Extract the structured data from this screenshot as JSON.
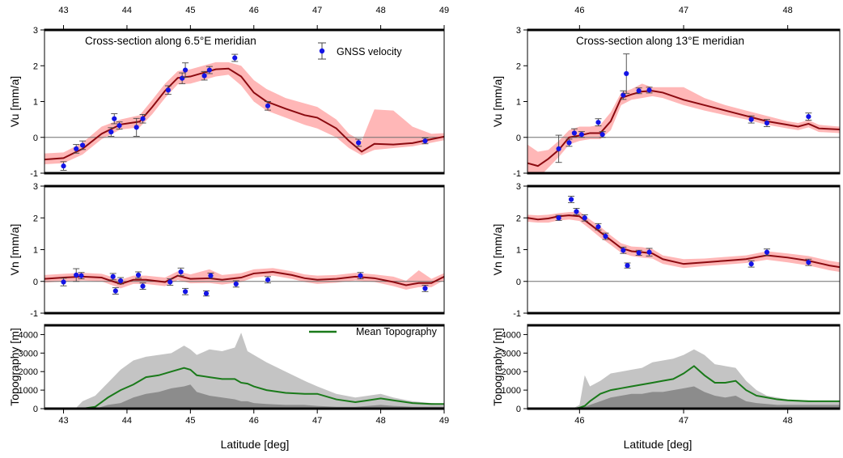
{
  "figure": {
    "xlabel": "Latitude [deg]",
    "colors": {
      "band": "#ffb7b7",
      "model_line": "#8b0a10",
      "gnss_point": "#1414e6",
      "error_bar": "#444444",
      "topo_range": "#c4c4c4",
      "topo_min": "#8c8c8c",
      "topo_mean": "#1a7a1a",
      "zero_line": "#6f6f6f"
    }
  },
  "legend": {
    "gnss": "GNSS velocity",
    "topo": "Mean Topography"
  },
  "chart_data": [
    {
      "id": "left-vu",
      "type": "line",
      "title": "Cross-section along 6.5°E meridian",
      "ylabel": "Vu [mm/a]",
      "xlim": [
        42.7,
        49.0
      ],
      "ylim": [
        -1,
        3
      ],
      "xticks": [
        43,
        44,
        45,
        46,
        47,
        48,
        49
      ],
      "yticks": [
        -1,
        0,
        1,
        2,
        3
      ],
      "model": {
        "x": [
          42.7,
          43.0,
          43.3,
          43.6,
          43.9,
          44.2,
          44.4,
          44.6,
          44.8,
          45.0,
          45.2,
          45.4,
          45.6,
          45.8,
          46.0,
          46.2,
          46.5,
          46.8,
          47.0,
          47.3,
          47.5,
          47.7,
          47.9,
          48.2,
          48.5,
          48.8,
          49.0
        ],
        "y": [
          -0.62,
          -0.58,
          -0.32,
          0.1,
          0.36,
          0.44,
          0.85,
          1.3,
          1.66,
          1.7,
          1.8,
          1.9,
          1.92,
          1.7,
          1.25,
          1.0,
          0.8,
          0.62,
          0.55,
          0.25,
          -0.1,
          -0.4,
          -0.18,
          -0.2,
          -0.16,
          -0.05,
          0.02
        ],
        "band_upper": [
          -0.45,
          -0.42,
          -0.15,
          0.3,
          0.5,
          0.62,
          1.05,
          1.5,
          1.85,
          1.9,
          2.0,
          2.1,
          2.1,
          2.0,
          1.6,
          1.35,
          1.1,
          0.95,
          0.85,
          0.5,
          0.1,
          -0.1,
          0.78,
          0.75,
          0.3,
          0.1,
          0.12
        ],
        "band_lower": [
          -0.75,
          -0.72,
          -0.48,
          -0.05,
          0.22,
          0.28,
          0.65,
          1.1,
          1.48,
          1.5,
          1.6,
          1.7,
          1.75,
          1.45,
          1.0,
          0.75,
          0.55,
          0.35,
          0.25,
          0.0,
          -0.3,
          -0.5,
          -0.35,
          -0.3,
          -0.25,
          -0.15,
          -0.08
        ]
      },
      "gnss": [
        {
          "x": 43.0,
          "y": -0.8,
          "err": 0.12
        },
        {
          "x": 43.2,
          "y": -0.32,
          "err": 0.12
        },
        {
          "x": 43.3,
          "y": -0.22,
          "err": 0.12
        },
        {
          "x": 43.75,
          "y": 0.15,
          "err": 0.12
        },
        {
          "x": 43.8,
          "y": 0.52,
          "err": 0.14
        },
        {
          "x": 43.88,
          "y": 0.33,
          "err": 0.1
        },
        {
          "x": 44.15,
          "y": 0.28,
          "err": 0.25
        },
        {
          "x": 44.25,
          "y": 0.52,
          "err": 0.12
        },
        {
          "x": 44.65,
          "y": 1.32,
          "err": 0.12
        },
        {
          "x": 44.87,
          "y": 1.65,
          "err": 0.15
        },
        {
          "x": 44.92,
          "y": 1.88,
          "err": 0.2
        },
        {
          "x": 45.22,
          "y": 1.72,
          "err": 0.12
        },
        {
          "x": 45.3,
          "y": 1.88,
          "err": 0.1
        },
        {
          "x": 45.7,
          "y": 2.22,
          "err": 0.1
        },
        {
          "x": 46.22,
          "y": 0.88,
          "err": 0.12
        },
        {
          "x": 47.65,
          "y": -0.15,
          "err": 0.1
        },
        {
          "x": 48.7,
          "y": -0.1,
          "err": 0.08
        }
      ]
    },
    {
      "id": "left-vn",
      "type": "line",
      "ylabel": "Vn [mm/a]",
      "xlim": [
        42.7,
        49.0
      ],
      "ylim": [
        -1,
        3
      ],
      "xticks": [
        43,
        44,
        45,
        46,
        47,
        48,
        49
      ],
      "yticks": [
        -1,
        0,
        1,
        2,
        3
      ],
      "model": {
        "x": [
          42.7,
          43.0,
          43.3,
          43.6,
          43.9,
          44.1,
          44.3,
          44.6,
          44.8,
          45.0,
          45.3,
          45.5,
          45.8,
          46.0,
          46.3,
          46.6,
          46.8,
          47.0,
          47.3,
          47.6,
          47.9,
          48.2,
          48.4,
          48.6,
          48.8,
          49.0
        ],
        "y": [
          0.08,
          0.12,
          0.15,
          0.12,
          -0.08,
          0.05,
          0.05,
          -0.02,
          0.18,
          0.08,
          0.1,
          0.05,
          0.12,
          0.25,
          0.3,
          0.2,
          0.1,
          0.05,
          0.08,
          0.15,
          0.1,
          -0.02,
          -0.12,
          -0.05,
          -0.05,
          0.15
        ],
        "band_upper": [
          0.2,
          0.24,
          0.27,
          0.24,
          0.05,
          0.18,
          0.18,
          0.12,
          0.32,
          0.22,
          0.38,
          0.2,
          0.26,
          0.38,
          0.42,
          0.32,
          0.22,
          0.18,
          0.2,
          0.27,
          0.22,
          0.15,
          0.02,
          0.35,
          0.08,
          0.26
        ],
        "band_lower": [
          -0.04,
          0.0,
          0.03,
          0.0,
          -0.22,
          -0.08,
          -0.08,
          -0.15,
          0.04,
          -0.06,
          -0.05,
          -0.1,
          -0.02,
          0.12,
          0.18,
          0.08,
          -0.02,
          -0.08,
          -0.04,
          0.03,
          -0.02,
          -0.15,
          -0.26,
          -0.18,
          -0.18,
          0.04
        ]
      },
      "gnss": [
        {
          "x": 43.0,
          "y": -0.02,
          "err": 0.12
        },
        {
          "x": 43.2,
          "y": 0.2,
          "err": 0.2
        },
        {
          "x": 43.28,
          "y": 0.18,
          "err": 0.1
        },
        {
          "x": 43.78,
          "y": 0.15,
          "err": 0.1
        },
        {
          "x": 43.82,
          "y": -0.3,
          "err": 0.1
        },
        {
          "x": 43.9,
          "y": 0.02,
          "err": 0.1
        },
        {
          "x": 44.18,
          "y": 0.2,
          "err": 0.1
        },
        {
          "x": 44.25,
          "y": -0.15,
          "err": 0.1
        },
        {
          "x": 44.68,
          "y": -0.02,
          "err": 0.1
        },
        {
          "x": 44.85,
          "y": 0.3,
          "err": 0.12
        },
        {
          "x": 44.92,
          "y": -0.32,
          "err": 0.1
        },
        {
          "x": 45.25,
          "y": -0.38,
          "err": 0.08
        },
        {
          "x": 45.32,
          "y": 0.18,
          "err": 0.08
        },
        {
          "x": 45.72,
          "y": -0.08,
          "err": 0.1
        },
        {
          "x": 46.22,
          "y": 0.05,
          "err": 0.1
        },
        {
          "x": 47.68,
          "y": 0.18,
          "err": 0.1
        },
        {
          "x": 48.7,
          "y": -0.22,
          "err": 0.1
        }
      ]
    },
    {
      "id": "left-topo",
      "type": "area",
      "ylabel": "Topography [m]",
      "xlim": [
        42.7,
        49.0
      ],
      "ylim": [
        0,
        4500
      ],
      "xticks": [
        43,
        44,
        45,
        46,
        47,
        48,
        49
      ],
      "yticks": [
        0,
        1000,
        2000,
        3000,
        4000
      ],
      "topo": {
        "x": [
          42.7,
          43.0,
          43.2,
          43.3,
          43.5,
          43.7,
          43.9,
          44.1,
          44.3,
          44.5,
          44.7,
          44.9,
          45.0,
          45.1,
          45.3,
          45.5,
          45.7,
          45.8,
          45.9,
          46.0,
          46.2,
          46.5,
          46.8,
          47.0,
          47.3,
          47.6,
          47.8,
          48.0,
          48.2,
          48.5,
          48.8,
          49.0
        ],
        "max": [
          0,
          0,
          50,
          400,
          700,
          1400,
          2100,
          2600,
          2800,
          2900,
          3000,
          3400,
          3200,
          2900,
          3200,
          3100,
          3300,
          4100,
          3100,
          2900,
          2500,
          2000,
          1500,
          1200,
          800,
          600,
          700,
          800,
          600,
          400,
          300,
          250
        ],
        "mean": [
          0,
          0,
          0,
          0,
          100,
          600,
          1000,
          1300,
          1700,
          1800,
          2000,
          2200,
          2100,
          1800,
          1700,
          1600,
          1600,
          1400,
          1350,
          1200,
          1000,
          850,
          800,
          800,
          500,
          350,
          450,
          550,
          450,
          300,
          250,
          250
        ],
        "min": [
          0,
          0,
          0,
          0,
          0,
          200,
          300,
          600,
          800,
          900,
          1100,
          1200,
          1300,
          900,
          700,
          600,
          500,
          400,
          400,
          300,
          250,
          200,
          200,
          150,
          100,
          100,
          150,
          200,
          150,
          100,
          100,
          100
        ]
      }
    },
    {
      "id": "right-vu",
      "type": "line",
      "title": "Cross-section along 13°E meridian",
      "ylabel": "Vu [mm/a]",
      "xlim": [
        45.5,
        48.5
      ],
      "ylim": [
        -1,
        3
      ],
      "xticks": [
        46,
        47,
        48
      ],
      "yticks": [
        -1,
        0,
        1,
        2,
        3
      ],
      "model": {
        "x": [
          45.5,
          45.6,
          45.7,
          45.8,
          45.9,
          46.0,
          46.1,
          46.2,
          46.3,
          46.4,
          46.5,
          46.6,
          46.7,
          46.8,
          47.0,
          47.2,
          47.4,
          47.6,
          47.8,
          48.0,
          48.1,
          48.2,
          48.3,
          48.5
        ],
        "y": [
          -0.72,
          -0.8,
          -0.6,
          -0.35,
          0.0,
          0.05,
          0.12,
          0.12,
          0.45,
          1.1,
          1.2,
          1.28,
          1.3,
          1.25,
          1.05,
          0.9,
          0.75,
          0.6,
          0.45,
          0.35,
          0.3,
          0.38,
          0.25,
          0.22
        ],
        "band_upper": [
          -0.2,
          -0.4,
          -0.35,
          -0.1,
          0.2,
          0.3,
          0.3,
          0.35,
          0.7,
          1.25,
          1.35,
          1.5,
          1.4,
          1.4,
          1.4,
          1.1,
          0.9,
          0.75,
          0.6,
          0.45,
          0.4,
          0.48,
          0.35,
          0.3
        ],
        "band_lower": [
          -1.3,
          -1.15,
          -0.85,
          -0.55,
          -0.2,
          -0.1,
          -0.05,
          -0.05,
          0.2,
          0.9,
          1.05,
          1.1,
          1.15,
          1.1,
          0.9,
          0.75,
          0.62,
          0.5,
          0.35,
          0.25,
          0.2,
          0.28,
          0.15,
          0.12
        ]
      },
      "gnss": [
        {
          "x": 45.8,
          "y": -0.32,
          "err": 0.38
        },
        {
          "x": 45.9,
          "y": -0.15,
          "err": 0.1
        },
        {
          "x": 45.95,
          "y": 0.12,
          "err": 0.12
        },
        {
          "x": 46.02,
          "y": 0.08,
          "err": 0.08
        },
        {
          "x": 46.18,
          "y": 0.42,
          "err": 0.1
        },
        {
          "x": 46.22,
          "y": 0.08,
          "err": 0.08
        },
        {
          "x": 46.42,
          "y": 1.18,
          "err": 0.12
        },
        {
          "x": 46.45,
          "y": 1.78,
          "err": 0.55
        },
        {
          "x": 46.57,
          "y": 1.3,
          "err": 0.08
        },
        {
          "x": 46.67,
          "y": 1.32,
          "err": 0.08
        },
        {
          "x": 47.65,
          "y": 0.5,
          "err": 0.1
        },
        {
          "x": 47.8,
          "y": 0.4,
          "err": 0.1
        },
        {
          "x": 48.2,
          "y": 0.58,
          "err": 0.1
        }
      ]
    },
    {
      "id": "right-vn",
      "type": "line",
      "ylabel": "Vn [mm/a]",
      "xlim": [
        45.5,
        48.5
      ],
      "ylim": [
        -1,
        3
      ],
      "xticks": [
        46,
        47,
        48
      ],
      "yticks": [
        -1,
        0,
        1,
        2,
        3
      ],
      "model": {
        "x": [
          45.5,
          45.6,
          45.7,
          45.8,
          45.9,
          46.0,
          46.1,
          46.2,
          46.3,
          46.4,
          46.5,
          46.6,
          46.7,
          46.8,
          47.0,
          47.2,
          47.4,
          47.6,
          47.8,
          48.0,
          48.2,
          48.4,
          48.5
        ],
        "y": [
          2.0,
          1.95,
          1.98,
          2.05,
          2.08,
          2.05,
          1.8,
          1.55,
          1.3,
          1.05,
          0.95,
          0.92,
          0.88,
          0.7,
          0.55,
          0.6,
          0.65,
          0.7,
          0.82,
          0.75,
          0.65,
          0.5,
          0.45
        ],
        "band_upper": [
          2.1,
          2.08,
          2.1,
          2.15,
          2.18,
          2.2,
          1.95,
          1.72,
          1.45,
          1.2,
          1.1,
          1.08,
          1.02,
          0.82,
          0.7,
          0.72,
          0.77,
          0.82,
          0.95,
          0.88,
          0.8,
          0.65,
          0.6
        ],
        "band_lower": [
          1.88,
          1.85,
          1.85,
          1.92,
          1.95,
          1.9,
          1.65,
          1.38,
          1.15,
          0.9,
          0.8,
          0.75,
          0.72,
          0.55,
          0.42,
          0.48,
          0.53,
          0.58,
          0.68,
          0.6,
          0.5,
          0.35,
          0.3
        ]
      },
      "gnss": [
        {
          "x": 45.8,
          "y": 2.0,
          "err": 0.08
        },
        {
          "x": 45.92,
          "y": 2.58,
          "err": 0.1
        },
        {
          "x": 45.97,
          "y": 2.2,
          "err": 0.1
        },
        {
          "x": 46.05,
          "y": 2.0,
          "err": 0.1
        },
        {
          "x": 46.18,
          "y": 1.72,
          "err": 0.1
        },
        {
          "x": 46.25,
          "y": 1.42,
          "err": 0.1
        },
        {
          "x": 46.42,
          "y": 0.98,
          "err": 0.1
        },
        {
          "x": 46.46,
          "y": 0.5,
          "err": 0.08
        },
        {
          "x": 46.57,
          "y": 0.9,
          "err": 0.08
        },
        {
          "x": 46.67,
          "y": 0.92,
          "err": 0.12
        },
        {
          "x": 47.65,
          "y": 0.55,
          "err": 0.1
        },
        {
          "x": 47.8,
          "y": 0.92,
          "err": 0.1
        },
        {
          "x": 48.2,
          "y": 0.6,
          "err": 0.1
        }
      ]
    },
    {
      "id": "right-topo",
      "type": "area",
      "ylabel": "Topography [m]",
      "xlim": [
        45.5,
        48.5
      ],
      "ylim": [
        0,
        4500
      ],
      "xticks": [
        46,
        47,
        48
      ],
      "yticks": [
        0,
        1000,
        2000,
        3000,
        4000
      ],
      "topo": {
        "x": [
          45.5,
          45.8,
          45.95,
          46.0,
          46.05,
          46.1,
          46.2,
          46.3,
          46.4,
          46.5,
          46.6,
          46.7,
          46.8,
          46.9,
          47.0,
          47.1,
          47.2,
          47.3,
          47.4,
          47.5,
          47.6,
          47.7,
          47.8,
          47.9,
          48.0,
          48.2,
          48.4,
          48.5
        ],
        "max": [
          0,
          0,
          50,
          200,
          1800,
          1200,
          1500,
          1900,
          2000,
          2100,
          2200,
          2500,
          2600,
          2700,
          2900,
          3200,
          2900,
          2400,
          2300,
          2200,
          1500,
          1000,
          700,
          600,
          500,
          450,
          400,
          400
        ],
        "mean": [
          0,
          0,
          0,
          50,
          150,
          400,
          800,
          1000,
          1100,
          1200,
          1300,
          1400,
          1500,
          1600,
          1900,
          2300,
          1800,
          1400,
          1400,
          1500,
          1000,
          700,
          600,
          500,
          450,
          400,
          400,
          400
        ],
        "min": [
          0,
          0,
          0,
          0,
          100,
          200,
          400,
          600,
          700,
          800,
          800,
          900,
          900,
          1000,
          1100,
          1200,
          900,
          700,
          600,
          700,
          400,
          300,
          250,
          200,
          200,
          200,
          200,
          200
        ]
      }
    }
  ]
}
